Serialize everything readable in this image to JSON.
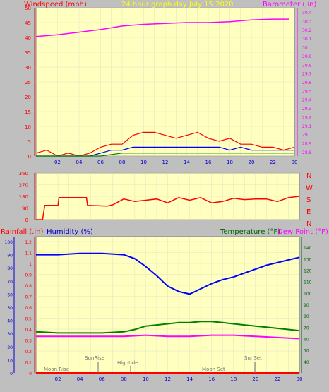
{
  "header": {
    "wind_label": "Windspeed (mph)",
    "title": "24 hour graph day  July 15 2020",
    "baro_label": "Barometer (.in)"
  },
  "panel3_labels": {
    "rain": "Rainfall (.in)",
    "humidity": "Humidity (%)",
    "temperature": "Temperature (°F)",
    "dewpoint": "Dew Point (°F)"
  },
  "compass": [
    "N",
    "W",
    "S",
    "E",
    "N"
  ],
  "x_ticks": [
    "02",
    "04",
    "06",
    "08",
    "10",
    "12",
    "14",
    "16",
    "18",
    "20",
    "22",
    "00"
  ],
  "colors": {
    "bg": "#bfbfbf",
    "plot": "#ffffc0",
    "axis_red": "#ff0000",
    "axis_magenta": "#ff00ff",
    "axis_blue": "#0000cc",
    "axis_green": "#006600"
  },
  "annotations": {
    "moonrise": "Moon Rise",
    "sunrise": "SunRise",
    "hightide": "Hightide",
    "moonset": "Moon Set",
    "sunset": "SunSet"
  },
  "chart_data": [
    {
      "type": "line",
      "panel": "wind-barometer",
      "title": "24 hour graph day  July 15 2020",
      "x_unit": "hour",
      "x_range": [
        0,
        24
      ],
      "left_axis": {
        "label": "Windspeed (mph)",
        "range": [
          0,
          50
        ],
        "ticks": [
          "0",
          "5",
          "10",
          "15",
          "20",
          "25",
          "30",
          "35",
          "40",
          "45",
          "50"
        ]
      },
      "right_axis": {
        "label": "Barometer (.in)",
        "range": [
          28.75,
          30.45
        ],
        "ticks": [
          "28.8",
          "28.9",
          "29",
          "29.1",
          "29.2",
          "29.3",
          "29.4",
          "29.5",
          "29.6",
          "29.7",
          "29.8",
          "29.9",
          "30",
          "30.1",
          "30.2",
          "30.3",
          "30.4"
        ]
      },
      "series": [
        {
          "name": "Barometer",
          "axis": "right",
          "x": [
            0,
            2,
            4,
            6,
            8,
            10,
            12,
            14,
            16,
            18,
            20,
            22,
            23.5
          ],
          "y": [
            30.12,
            30.14,
            30.17,
            30.2,
            30.24,
            30.26,
            30.27,
            30.28,
            30.28,
            30.29,
            30.31,
            30.32,
            30.32
          ]
        },
        {
          "name": "Wind gust",
          "axis": "left",
          "x": [
            0,
            1,
            2,
            3,
            4,
            5,
            6,
            7,
            8,
            9,
            10,
            11,
            12,
            13,
            14,
            15,
            16,
            17,
            18,
            19,
            20,
            21,
            22,
            23,
            24
          ],
          "y": [
            1,
            2,
            0,
            1,
            0,
            1,
            3,
            4,
            4,
            7,
            8,
            8,
            7,
            6,
            7,
            8,
            6,
            5,
            6,
            4,
            4,
            3,
            3,
            2,
            3
          ]
        },
        {
          "name": "Wind average",
          "axis": "left",
          "x": [
            0,
            2,
            4,
            5,
            6,
            7,
            8,
            9,
            10,
            11,
            12,
            13,
            14,
            15,
            16,
            17,
            18,
            19,
            20,
            21,
            22,
            23,
            24
          ],
          "y": [
            0,
            0,
            0,
            0,
            1,
            2,
            2,
            3,
            3,
            3,
            3,
            3,
            3,
            3,
            3,
            3,
            2,
            3,
            2,
            2,
            2,
            2,
            2
          ]
        },
        {
          "name": "Wind low",
          "axis": "left",
          "x": [
            0,
            5,
            6,
            8,
            10,
            12,
            14,
            16,
            18,
            20,
            22,
            24
          ],
          "y": [
            0,
            0,
            0,
            1,
            1,
            1,
            1,
            1,
            1,
            1,
            1,
            1
          ]
        }
      ]
    },
    {
      "type": "line",
      "panel": "wind-direction",
      "x_unit": "hour",
      "x_range": [
        0,
        24
      ],
      "left_axis": {
        "range": [
          0,
          360
        ],
        "ticks": [
          "0",
          "90",
          "180",
          "270",
          "360"
        ]
      },
      "series": [
        {
          "name": "Wind direction",
          "x": [
            0,
            0.6,
            0.8,
            2,
            2.1,
            4.6,
            4.7,
            6.5,
            7,
            8,
            9,
            10,
            11,
            12,
            13,
            14,
            15,
            15.5,
            16,
            17,
            18,
            19,
            20,
            21,
            22,
            23,
            24
          ],
          "y": [
            0,
            0,
            110,
            110,
            170,
            170,
            110,
            105,
            115,
            160,
            140,
            150,
            160,
            130,
            170,
            150,
            170,
            150,
            130,
            140,
            165,
            155,
            160,
            160,
            140,
            170,
            180
          ]
        }
      ]
    },
    {
      "type": "line",
      "panel": "temp-humidity-rain",
      "x_unit": "hour",
      "x_range": [
        0,
        24
      ],
      "rain_axis": {
        "label": "Rainfall (.in)",
        "range": [
          0,
          1.2
        ],
        "ticks": [
          "0",
          "0.1",
          "0.2",
          "0.3",
          "0.4",
          "0.5",
          "0.6",
          "0.7",
          "0.8",
          "0.9",
          "1",
          "1.1",
          "1.2"
        ]
      },
      "humidity_axis": {
        "label": "Humidity (%)",
        "range": [
          0,
          100
        ],
        "ticks": [
          "0",
          "10",
          "20",
          "30",
          "40",
          "50",
          "60",
          "70",
          "80",
          "90",
          "100"
        ]
      },
      "temp_axis": {
        "label": "Temperature (°F)",
        "range": [
          30,
          145
        ],
        "ticks": [
          "40",
          "50",
          "60",
          "70",
          "80",
          "90",
          "100",
          "110",
          "120",
          "130",
          "140"
        ]
      },
      "series": [
        {
          "name": "Humidity",
          "axis": "humidity",
          "x": [
            0,
            2,
            4,
            6,
            8,
            9,
            10,
            11,
            12,
            13,
            14,
            15,
            16,
            17,
            18,
            19,
            20,
            21,
            22,
            23,
            24
          ],
          "y": [
            90,
            90,
            91,
            91,
            90,
            87,
            81,
            74,
            66,
            62,
            60,
            64,
            68,
            71,
            73,
            76,
            79,
            82,
            84,
            86,
            88
          ]
        },
        {
          "name": "Temperature",
          "axis": "temp",
          "x": [
            0,
            2,
            4,
            6,
            8,
            9,
            10,
            11,
            12,
            13,
            14,
            15,
            16,
            17,
            18,
            19,
            20,
            21,
            22,
            23,
            24
          ],
          "y": [
            66,
            65,
            65,
            65,
            66,
            68,
            71,
            72,
            73,
            74,
            74,
            75,
            75,
            74,
            73,
            72,
            71,
            70,
            69,
            68,
            67
          ]
        },
        {
          "name": "Dew Point",
          "axis": "temp",
          "x": [
            0,
            2,
            4,
            6,
            8,
            10,
            12,
            14,
            16,
            18,
            20,
            22,
            24
          ],
          "y": [
            62,
            62,
            62,
            62,
            62,
            63,
            62,
            62,
            63,
            63,
            62,
            61,
            60
          ]
        },
        {
          "name": "Rainfall",
          "axis": "rain",
          "x": [
            0,
            24
          ],
          "y": [
            0,
            0
          ]
        }
      ]
    }
  ]
}
